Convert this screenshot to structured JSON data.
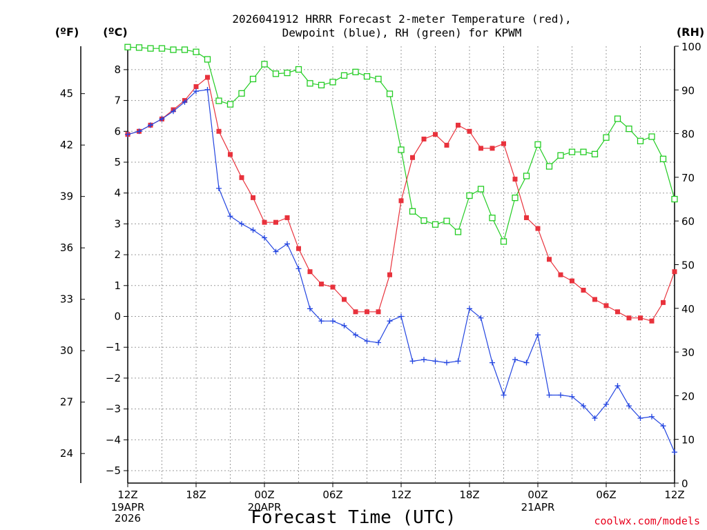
{
  "title": {
    "line1": "2026041912 HRRR Forecast 2-meter Temperature (red),",
    "line2": "Dewpoint (blue), RH (green) for KPWM"
  },
  "units": {
    "fahrenheit": "(ºF)",
    "celsius": "(ºC)",
    "rh": "(RH)"
  },
  "credit": "coolwx.com/models",
  "colors": {
    "temperature": "#e8323c",
    "dewpoint": "#2244e0",
    "rh": "#22cc22"
  },
  "chart_data": {
    "type": "line",
    "title": "2026041912 HRRR Forecast 2-meter Temperature (red), Dewpoint (blue), RH (green) for KPWM",
    "xlabel": "Forecast Time (UTC)",
    "ylabel_left_celsius": "(ºC)",
    "ylabel_left_fahrenheit": "(ºF)",
    "ylabel_right": "(RH)",
    "x_units": "forecast hour from 2026-04-19 12Z",
    "xlim": [
      0,
      48
    ],
    "ylim_celsius": [
      -5.5,
      8.7
    ],
    "ylim_rh": [
      0,
      100
    ],
    "x_ticks": [
      {
        "hour": 0,
        "label": "12Z",
        "sub": [
          "19APR",
          "2026"
        ]
      },
      {
        "hour": 6,
        "label": "18Z",
        "sub": []
      },
      {
        "hour": 12,
        "label": "00Z",
        "sub": [
          "20APR"
        ]
      },
      {
        "hour": 18,
        "label": "06Z",
        "sub": []
      },
      {
        "hour": 24,
        "label": "12Z",
        "sub": []
      },
      {
        "hour": 30,
        "label": "18Z",
        "sub": []
      },
      {
        "hour": 36,
        "label": "00Z",
        "sub": [
          "21APR"
        ]
      },
      {
        "hour": 42,
        "label": "06Z",
        "sub": []
      },
      {
        "hour": 48,
        "label": "12Z",
        "sub": []
      }
    ],
    "y_ticks_celsius": [
      "8",
      "7",
      "6",
      "5",
      "4",
      "3",
      "2",
      "1",
      "0",
      "−1",
      "−2",
      "−3",
      "−4",
      "−5"
    ],
    "y_ticks_fahrenheit": [
      "45",
      "42",
      "39",
      "36",
      "33",
      "30",
      "27",
      "24"
    ],
    "y_ticks_rh": [
      "100",
      "90",
      "80",
      "70",
      "60",
      "50",
      "40",
      "30",
      "20",
      "10",
      "0"
    ],
    "series": [
      {
        "name": "Temperature",
        "units": "°C",
        "marker": "filled-square",
        "values": [
          5.9,
          6.0,
          6.2,
          6.4,
          6.7,
          7.0,
          7.45,
          7.75,
          6.0,
          5.25,
          4.5,
          3.85,
          3.05,
          3.05,
          3.2,
          2.2,
          1.45,
          1.05,
          0.95,
          0.55,
          0.15,
          0.15,
          0.15,
          1.35,
          3.75,
          5.15,
          5.75,
          5.9,
          5.55,
          6.2,
          6.0,
          5.45,
          5.45,
          5.6,
          4.45,
          3.2,
          2.85,
          1.85,
          1.35,
          1.15,
          0.85,
          0.55,
          0.35,
          0.15,
          -0.05,
          -0.05,
          -0.15,
          0.45,
          1.45
        ]
      },
      {
        "name": "Dewpoint",
        "units": "°C",
        "marker": "plus",
        "values": [
          5.9,
          6.0,
          6.2,
          6.4,
          6.65,
          6.95,
          7.3,
          7.35,
          4.15,
          3.25,
          3.0,
          2.8,
          2.55,
          2.1,
          2.35,
          1.55,
          0.25,
          -0.15,
          -0.15,
          -0.3,
          -0.6,
          -0.8,
          -0.85,
          -0.15,
          0.0,
          -1.45,
          -1.4,
          -1.45,
          -1.5,
          -1.45,
          0.25,
          -0.05,
          -1.5,
          -2.55,
          -1.4,
          -1.5,
          -0.6,
          -2.55,
          -2.55,
          -2.6,
          -2.9,
          -3.3,
          -2.85,
          -2.25,
          -2.9,
          -3.3,
          -3.25,
          -3.55,
          -4.4
        ]
      },
      {
        "name": "RH",
        "units": "%",
        "marker": "open-square",
        "values": [
          99.8,
          99.7,
          99.5,
          99.5,
          99.2,
          99.2,
          98.7,
          97.0,
          87.5,
          86.7,
          89.2,
          92.5,
          95.9,
          93.7,
          93.9,
          94.7,
          91.5,
          91.1,
          91.8,
          93.3,
          94.1,
          93.1,
          92.5,
          89.1,
          76.3,
          62.2,
          60.1,
          59.2,
          60.0,
          57.5,
          65.8,
          67.3,
          60.7,
          55.3,
          65.3,
          70.3,
          77.5,
          72.5,
          75.0,
          75.8,
          75.8,
          75.3,
          79.1,
          83.4,
          81.1,
          78.3,
          79.3,
          74.2,
          65.0
        ]
      }
    ]
  }
}
